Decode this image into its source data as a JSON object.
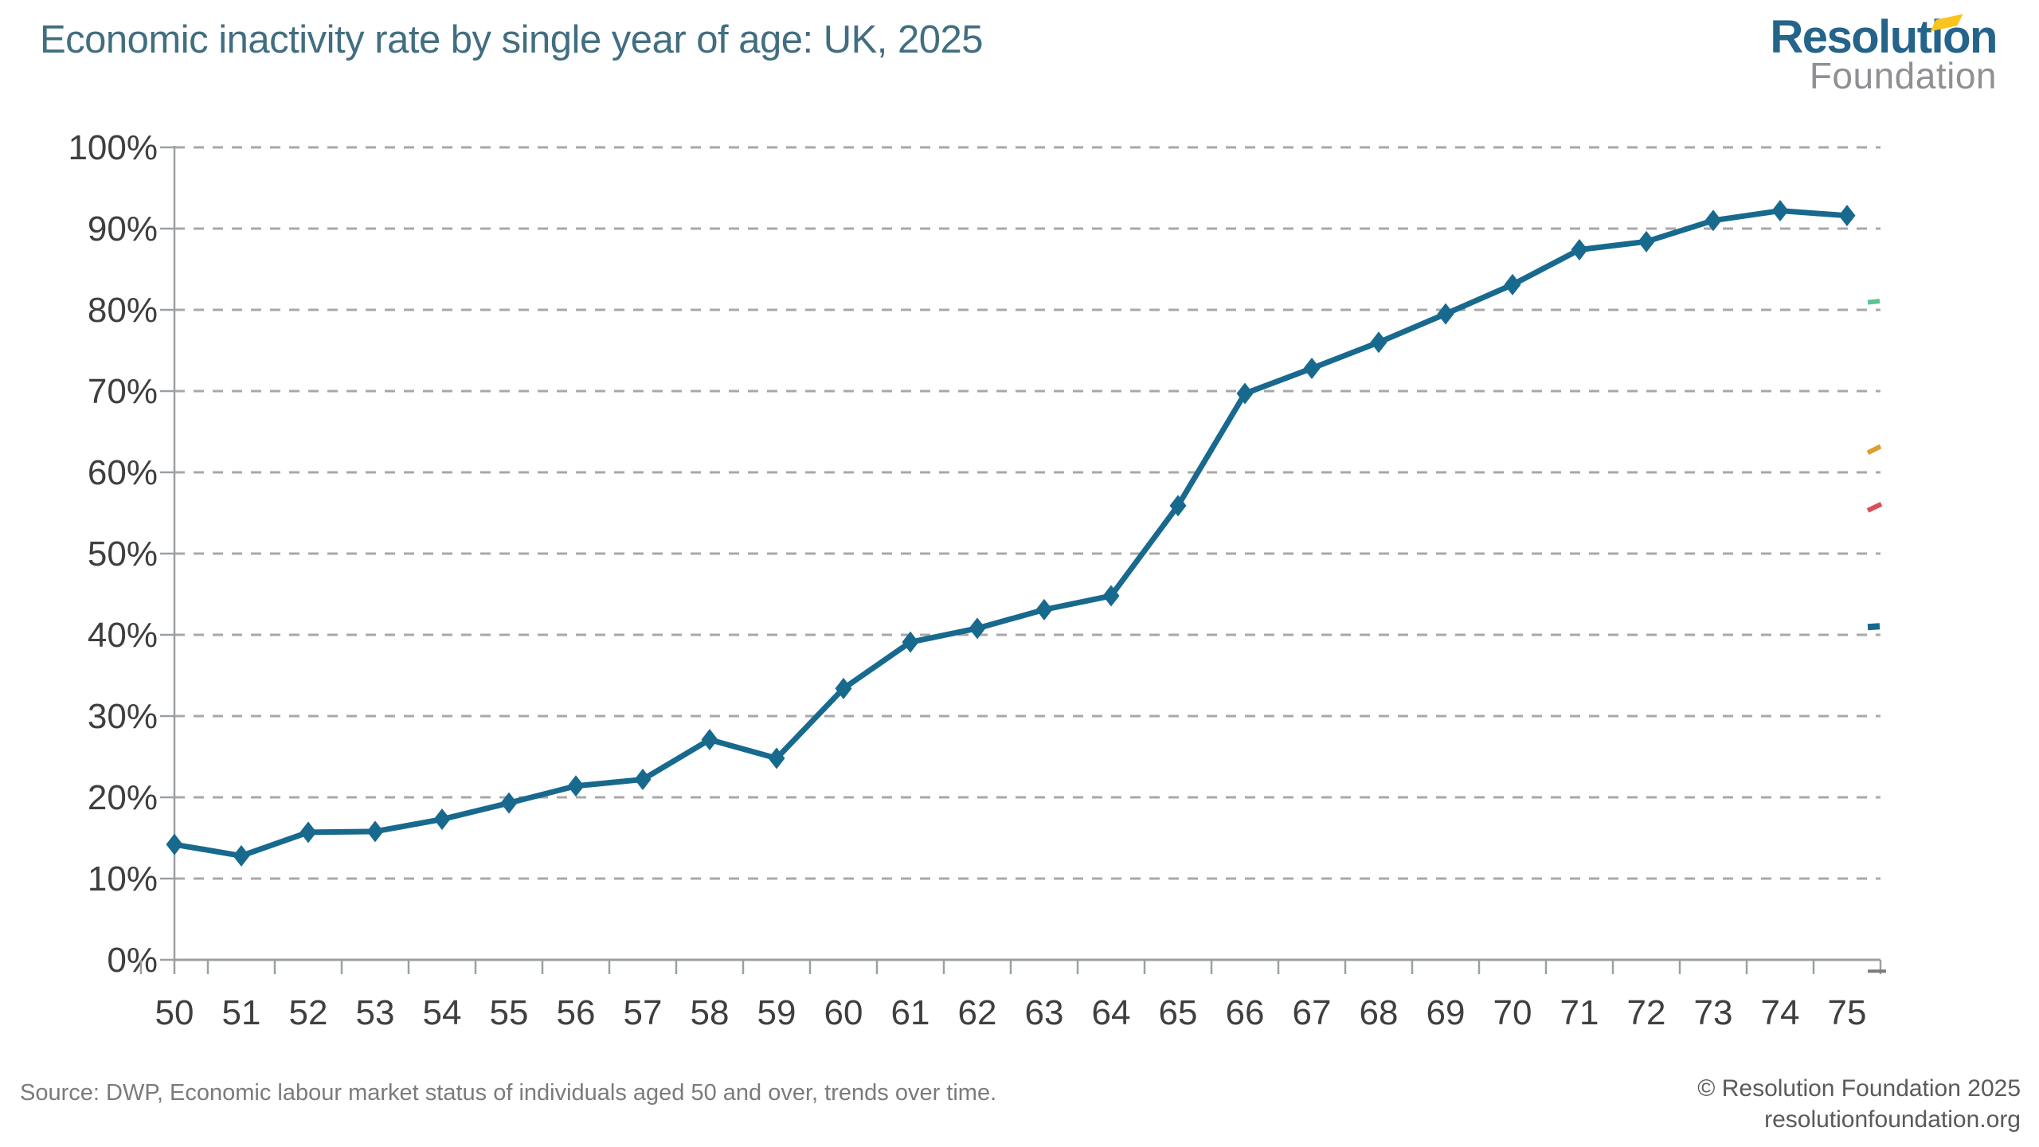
{
  "header": {
    "title": "Economic inactivity rate by single year of age: UK, 2025",
    "logo": {
      "line1": "Resolution",
      "line2": "Foundation",
      "flag_icon": "yellow-pennant"
    }
  },
  "footer": {
    "source": "Source: DWP, Economic labour market status of individuals aged 50 and over, trends over time.",
    "copyright": "© Resolution Foundation 2025",
    "website": "resolutionfoundation.org"
  },
  "colors": {
    "line": "#17698e",
    "grid": "#a8a8a8",
    "axis": "#9aa0a3",
    "tick_label": "#3f3f3f",
    "title": "#416e80",
    "logo_teal": "#24648b",
    "logo_gray": "#8e9093",
    "logo_flag": "#f9c41c",
    "source_text": "#7b7b7b",
    "copyright_text": "#5a5a5a"
  },
  "chart_data": {
    "type": "line",
    "title": "Economic inactivity rate by single year of age: UK, 2025",
    "xlabel": "",
    "ylabel": "",
    "x": [
      50,
      51,
      52,
      53,
      54,
      55,
      56,
      57,
      58,
      59,
      60,
      61,
      62,
      63,
      64,
      65,
      66,
      67,
      68,
      69,
      70,
      71,
      72,
      73,
      74,
      75
    ],
    "series": [
      {
        "name": "Economic inactivity rate",
        "color": "#17698e",
        "marker": "diamond",
        "values": [
          14.2,
          12.8,
          15.7,
          15.8,
          17.3,
          19.3,
          21.4,
          22.2,
          27.1,
          24.8,
          33.4,
          39.1,
          40.8,
          43.1,
          44.8,
          55.9,
          69.7,
          72.8,
          76.0,
          79.5,
          83.1,
          87.4,
          88.4,
          91.0,
          92.2,
          91.6
        ]
      }
    ],
    "ylim": [
      0,
      100
    ],
    "ytick_step": 10,
    "ytick_suffix": "%",
    "grid": "horizontal-dashed",
    "legend": "none"
  },
  "edge_fragments": [
    {
      "name": "clipped-series-green",
      "color": "#5bc494",
      "pct": 81.0,
      "rise": 1.5,
      "width": 6,
      "len": 15
    },
    {
      "name": "clipped-series-orange",
      "color": "#dd9f2e",
      "pct": 62.8,
      "rise": 8,
      "width": 6,
      "len": 16
    },
    {
      "name": "clipped-series-red",
      "color": "#d94f5c",
      "pct": 55.7,
      "rise": 8,
      "width": 6,
      "len": 17
    },
    {
      "name": "clipped-series-teal",
      "color": "#17698e",
      "pct": 41.0,
      "rise": 1,
      "width": 8,
      "len": 15
    },
    {
      "name": "clipped-axis-stub",
      "color": "#7d7d7d",
      "pct": -1.4,
      "rise": 0,
      "width": 4,
      "len": 23
    }
  ]
}
